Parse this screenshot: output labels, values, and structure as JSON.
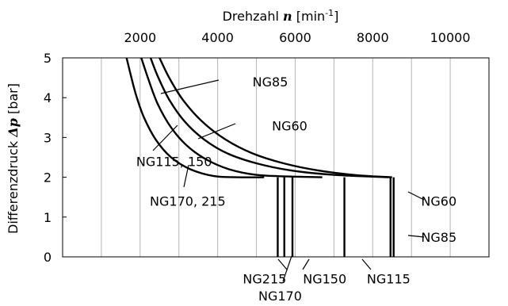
{
  "chart_data": {
    "type": "line",
    "x_axis": {
      "position": "top",
      "label": "Drehzahl ",
      "label_symbol": "n",
      "label_unit": " [min-1]",
      "ticks": [
        2000,
        4000,
        6000,
        8000,
        10000
      ],
      "range": [
        0,
        11000
      ]
    },
    "y_axis": {
      "label": "Differenzdruck ",
      "label_symbol": "Δp",
      "label_unit": " [bar]",
      "ticks": [
        0,
        1,
        2,
        3,
        4,
        5
      ],
      "range": [
        0,
        5
      ]
    },
    "grid": "vertical",
    "curves": [
      {
        "x": [
          1650,
          1750,
          1900,
          2100,
          2400,
          2800,
          3300,
          3900,
          4500,
          5200
        ],
        "y": [
          5,
          4.6,
          4.05,
          3.5,
          2.95,
          2.5,
          2.2,
          2.03,
          2.0,
          2.0
        ]
      },
      {
        "x": [
          2030,
          2200,
          2450,
          2800,
          3200,
          3700,
          4300,
          5000,
          5800,
          6700
        ],
        "y": [
          5,
          4.5,
          3.85,
          3.25,
          2.8,
          2.45,
          2.2,
          2.06,
          2.02,
          2.0
        ]
      },
      {
        "x": [
          2270,
          2450,
          2750,
          3150,
          3650,
          4250,
          5000,
          5900,
          7000,
          8400
        ],
        "y": [
          5,
          4.55,
          3.95,
          3.4,
          2.95,
          2.6,
          2.35,
          2.17,
          2.06,
          2.0
        ]
      },
      {
        "x": [
          2500,
          2750,
          3100,
          3600,
          4200,
          4900,
          5700,
          6600,
          7600,
          8500
        ],
        "y": [
          5,
          4.5,
          3.95,
          3.4,
          2.95,
          2.6,
          2.35,
          2.17,
          2.05,
          2.0
        ]
      }
    ],
    "cutoffs": [
      {
        "label": "NG215",
        "x": 5550
      },
      {
        "label": "NG170",
        "x": 5720
      },
      {
        "label": "NG150",
        "x": 5930
      },
      {
        "label": "NG115",
        "x": 7270
      },
      {
        "label": "NG85",
        "x": 8460
      },
      {
        "label": "NG60",
        "x": 8540
      }
    ],
    "annotations": [
      {
        "text": "NG85",
        "x": 4900,
        "y": 4.4
      },
      {
        "text": "NG60",
        "x": 5400,
        "y": 3.3
      },
      {
        "text": "NG115, 150",
        "x": 1900,
        "y": 2.4
      },
      {
        "text": "NG170, 215",
        "x": 2250,
        "y": 1.4
      },
      {
        "text": "NG60",
        "x": 9250,
        "y": 1.4
      },
      {
        "text": "NG85",
        "x": 9250,
        "y": 0.5
      },
      {
        "text": "NG215",
        "x": 4650,
        "y": -0.55
      },
      {
        "text": "NG170",
        "x": 5050,
        "y": -0.98
      },
      {
        "text": "NG150",
        "x": 6200,
        "y": -0.55
      },
      {
        "text": "NG115",
        "x": 7850,
        "y": -0.55
      }
    ]
  }
}
